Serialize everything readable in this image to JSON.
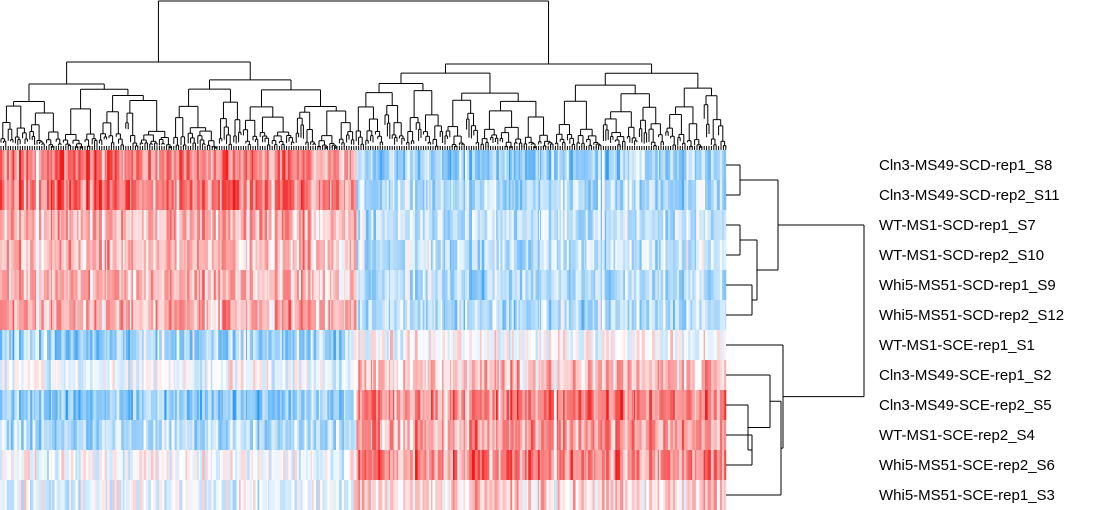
{
  "chart_data": {
    "type": "heatmap",
    "title": "",
    "xlabel": "",
    "ylabel": "",
    "rows": [
      "Cln3-MS49-SCD-rep1_S8",
      "Cln3-MS49-SCD-rep2_S11",
      "WT-MS1-SCD-rep1_S7",
      "WT-MS1-SCD-rep2_S10",
      "Whi5-MS51-SCD-rep1_S9",
      "Whi5-MS51-SCD-rep2_S12",
      "WT-MS1-SCE-rep1_S1",
      "Cln3-MS49-SCE-rep1_S2",
      "Cln3-MS49-SCE-rep2_S5",
      "WT-MS1-SCE-rep2_S4",
      "Whi5-MS51-SCE-rep2_S6",
      "Whi5-MS51-SCE-rep1_S3"
    ],
    "column_clusters": [
      {
        "fraction": 0.49,
        "pattern": [
          0.55,
          0.6,
          0.35,
          0.3,
          0.3,
          0.35,
          -0.45,
          -0.05,
          -0.5,
          -0.35,
          -0.05,
          -0.1
        ]
      },
      {
        "fraction": 0.51,
        "pattern": [
          -0.45,
          -0.4,
          -0.3,
          -0.3,
          -0.35,
          -0.35,
          0.0,
          0.3,
          0.55,
          0.45,
          0.55,
          0.2
        ]
      }
    ],
    "value_range": [
      -1,
      1
    ],
    "colors": {
      "low": "#2196f3",
      "mid": "#ffffff",
      "high": "#f21b1b"
    },
    "row_dendrogram": "right",
    "column_dendrogram": "top"
  }
}
